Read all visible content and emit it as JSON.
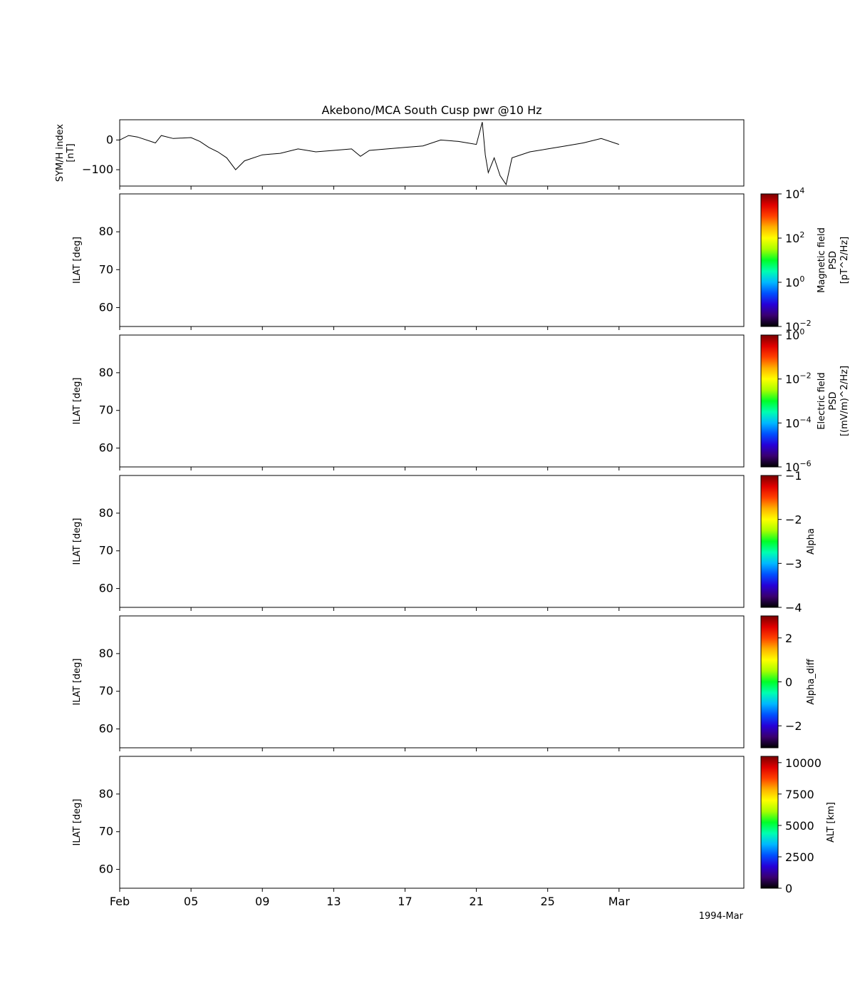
{
  "figure": {
    "title": "Akebono/MCA South Cusp pwr @10 Hz",
    "date_label": "1994-Mar"
  },
  "colors": {
    "axis": "#000000",
    "line": "#000000",
    "background": "#ffffff",
    "colormap": [
      "#000000",
      "#3a0070",
      "#2600d8",
      "#0050ff",
      "#00b8ff",
      "#00ffb0",
      "#00ff28",
      "#a8ff00",
      "#ffff00",
      "#ffb000",
      "#ff4000",
      "#e00000",
      "#7a0000"
    ]
  },
  "chart_data": [
    {
      "id": "symh",
      "type": "line",
      "title": "Akebono/MCA South Cusp pwr @10 Hz",
      "ylabel": [
        "SYM/H index",
        "[nT]"
      ],
      "ylim": [
        -155,
        68
      ],
      "yticks": [
        0,
        -100
      ],
      "ytick_labels": [
        "0",
        "−100"
      ],
      "xlim": [
        "1994-02-01",
        "1994-03-08"
      ],
      "series": [
        {
          "x": [
            "1994-02-01",
            "1994-02-01T12",
            "1994-02-02",
            "1994-02-03",
            "1994-02-03T08",
            "1994-02-04",
            "1994-02-05",
            "1994-02-05T12",
            "1994-02-06",
            "1994-02-06T12",
            "1994-02-07",
            "1994-02-07T12",
            "1994-02-08",
            "1994-02-09",
            "1994-02-10",
            "1994-02-11",
            "1994-02-12",
            "1994-02-13",
            "1994-02-14",
            "1994-02-14T12",
            "1994-02-15",
            "1994-02-16",
            "1994-02-17",
            "1994-02-18",
            "1994-02-19",
            "1994-02-20",
            "1994-02-20T12",
            "1994-02-21",
            "1994-02-21T08",
            "1994-02-21T12",
            "1994-02-21T16",
            "1994-02-22",
            "1994-02-22T08",
            "1994-02-22T16",
            "1994-02-23",
            "1994-02-24",
            "1994-02-25",
            "1994-02-26",
            "1994-02-27",
            "1994-02-28",
            "1994-03-01"
          ],
          "y": [
            0,
            15,
            10,
            -10,
            15,
            5,
            8,
            -5,
            -25,
            -40,
            -60,
            -100,
            -70,
            -50,
            -45,
            -30,
            -40,
            -35,
            -30,
            -55,
            -35,
            -30,
            -25,
            -20,
            0,
            -5,
            -10,
            -15,
            60,
            -50,
            -110,
            -60,
            -120,
            -150,
            -60,
            -40,
            -30,
            -20,
            -10,
            5,
            -15
          ]
        }
      ]
    },
    {
      "id": "mag-psd",
      "type": "heatmap",
      "ylabel": "ILAT [deg]",
      "ylim": [
        55,
        90
      ],
      "yticks": [
        60,
        70,
        80
      ],
      "colorbar": {
        "label": [
          "Magnetic field",
          "PSD",
          "[pT^2/Hz]"
        ],
        "scale": "log",
        "range": [
          0.01,
          10000
        ],
        "ticks": [
          {
            "base": "10",
            "exp": "4",
            "value": 10000
          },
          {
            "base": "10",
            "exp": "2",
            "value": 100
          },
          {
            "base": "10",
            "exp": "0",
            "value": 1
          },
          {
            "base": "10",
            "exp": "−2",
            "value": 0.01
          }
        ]
      }
    },
    {
      "id": "elec-psd",
      "type": "heatmap",
      "ylabel": "ILAT [deg]",
      "ylim": [
        55,
        90
      ],
      "yticks": [
        60,
        70,
        80
      ],
      "colorbar": {
        "label": [
          "Electric field",
          "PSD",
          "[(mV/m)^2/Hz]"
        ],
        "scale": "log",
        "range": [
          1e-06,
          1
        ],
        "ticks": [
          {
            "base": "10",
            "exp": "0",
            "value": 1
          },
          {
            "base": "10",
            "exp": "−2",
            "value": 0.01
          },
          {
            "base": "10",
            "exp": "−4",
            "value": 0.0001
          },
          {
            "base": "10",
            "exp": "−6",
            "value": 1e-06
          }
        ]
      }
    },
    {
      "id": "alpha",
      "type": "heatmap",
      "ylabel": "ILAT [deg]",
      "ylim": [
        55,
        90
      ],
      "yticks": [
        60,
        70,
        80
      ],
      "colorbar": {
        "label": [
          "Alpha"
        ],
        "scale": "linear",
        "range": [
          -4,
          -1
        ],
        "ticks": [
          {
            "text": "−1",
            "value": -1
          },
          {
            "text": "−2",
            "value": -2
          },
          {
            "text": "−3",
            "value": -3
          },
          {
            "text": "−4",
            "value": -4
          }
        ]
      }
    },
    {
      "id": "alpha-diff",
      "type": "heatmap",
      "ylabel": "ILAT [deg]",
      "ylim": [
        55,
        90
      ],
      "yticks": [
        60,
        70,
        80
      ],
      "colorbar": {
        "label": [
          "Alpha_diff"
        ],
        "scale": "linear",
        "range": [
          -3,
          3
        ],
        "ticks": [
          {
            "text": "2",
            "value": 2
          },
          {
            "text": "0",
            "value": 0
          },
          {
            "text": "−2",
            "value": -2
          }
        ]
      }
    },
    {
      "id": "alt",
      "type": "heatmap",
      "ylabel": "ILAT [deg]",
      "ylim": [
        55,
        90
      ],
      "yticks": [
        60,
        70,
        80
      ],
      "colorbar": {
        "label": [
          "ALT [km]"
        ],
        "scale": "linear",
        "range": [
          0,
          10500
        ],
        "ticks": [
          {
            "text": "10000",
            "value": 10000
          },
          {
            "text": "7500",
            "value": 7500
          },
          {
            "text": "5000",
            "value": 5000
          },
          {
            "text": "2500",
            "value": 2500
          },
          {
            "text": "0",
            "value": 0
          }
        ]
      }
    }
  ],
  "xaxis": {
    "ticks": [
      {
        "label": "Feb",
        "date": "1994-02-01"
      },
      {
        "label": "05",
        "date": "1994-02-05"
      },
      {
        "label": "09",
        "date": "1994-02-09"
      },
      {
        "label": "13",
        "date": "1994-02-13"
      },
      {
        "label": "17",
        "date": "1994-02-17"
      },
      {
        "label": "21",
        "date": "1994-02-21"
      },
      {
        "label": "25",
        "date": "1994-02-25"
      },
      {
        "label": "Mar",
        "date": "1994-03-01"
      }
    ]
  }
}
